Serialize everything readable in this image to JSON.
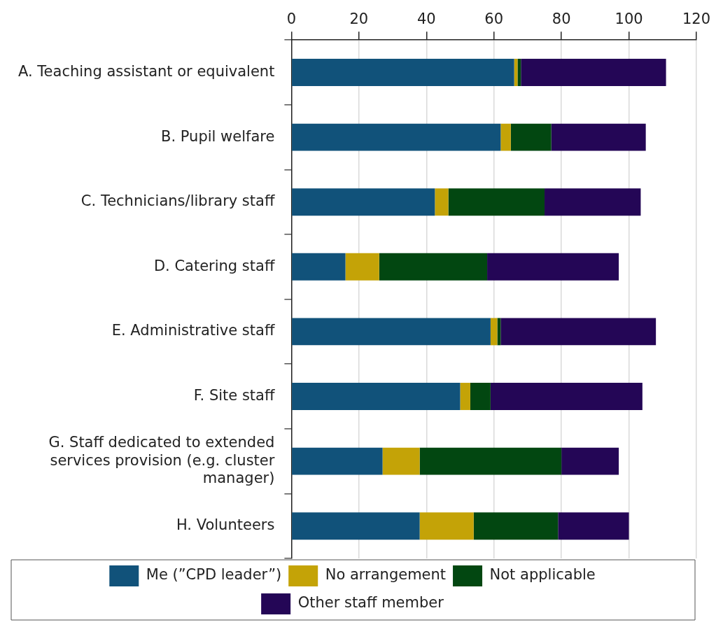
{
  "chart_data": {
    "type": "bar",
    "orientation": "horizontal",
    "stacked": true,
    "categories": [
      "A. Teaching assistant or equivalent",
      "B. Pupil welfare",
      "C. Technicians/library staff",
      "D. Catering staff",
      "E. Administrative staff",
      "F. Site staff",
      "G. Staff dedicated to extended services provision (e.g. cluster manager)",
      "H. Volunteers"
    ],
    "series": [
      {
        "name": "Me (”CPD leader”)",
        "color": "#11527a",
        "values": [
          66,
          62,
          42.5,
          16,
          59,
          50,
          27,
          38
        ]
      },
      {
        "name": "No arrangement",
        "color": "#c4a307",
        "values": [
          1,
          3,
          4,
          10,
          2,
          3,
          11,
          16
        ]
      },
      {
        "name": "Not applicable",
        "color": "#024711",
        "values": [
          1,
          12,
          28.5,
          32,
          1,
          6,
          42,
          25
        ]
      },
      {
        "name": "Other staff member",
        "color": "#240656",
        "values": [
          43,
          28,
          28.5,
          39,
          46,
          45,
          17,
          21
        ]
      }
    ],
    "xlim": [
      0,
      120
    ],
    "xticks": [
      0,
      20,
      40,
      60,
      80,
      100,
      120
    ],
    "grid": "x",
    "legend": "bottom"
  }
}
